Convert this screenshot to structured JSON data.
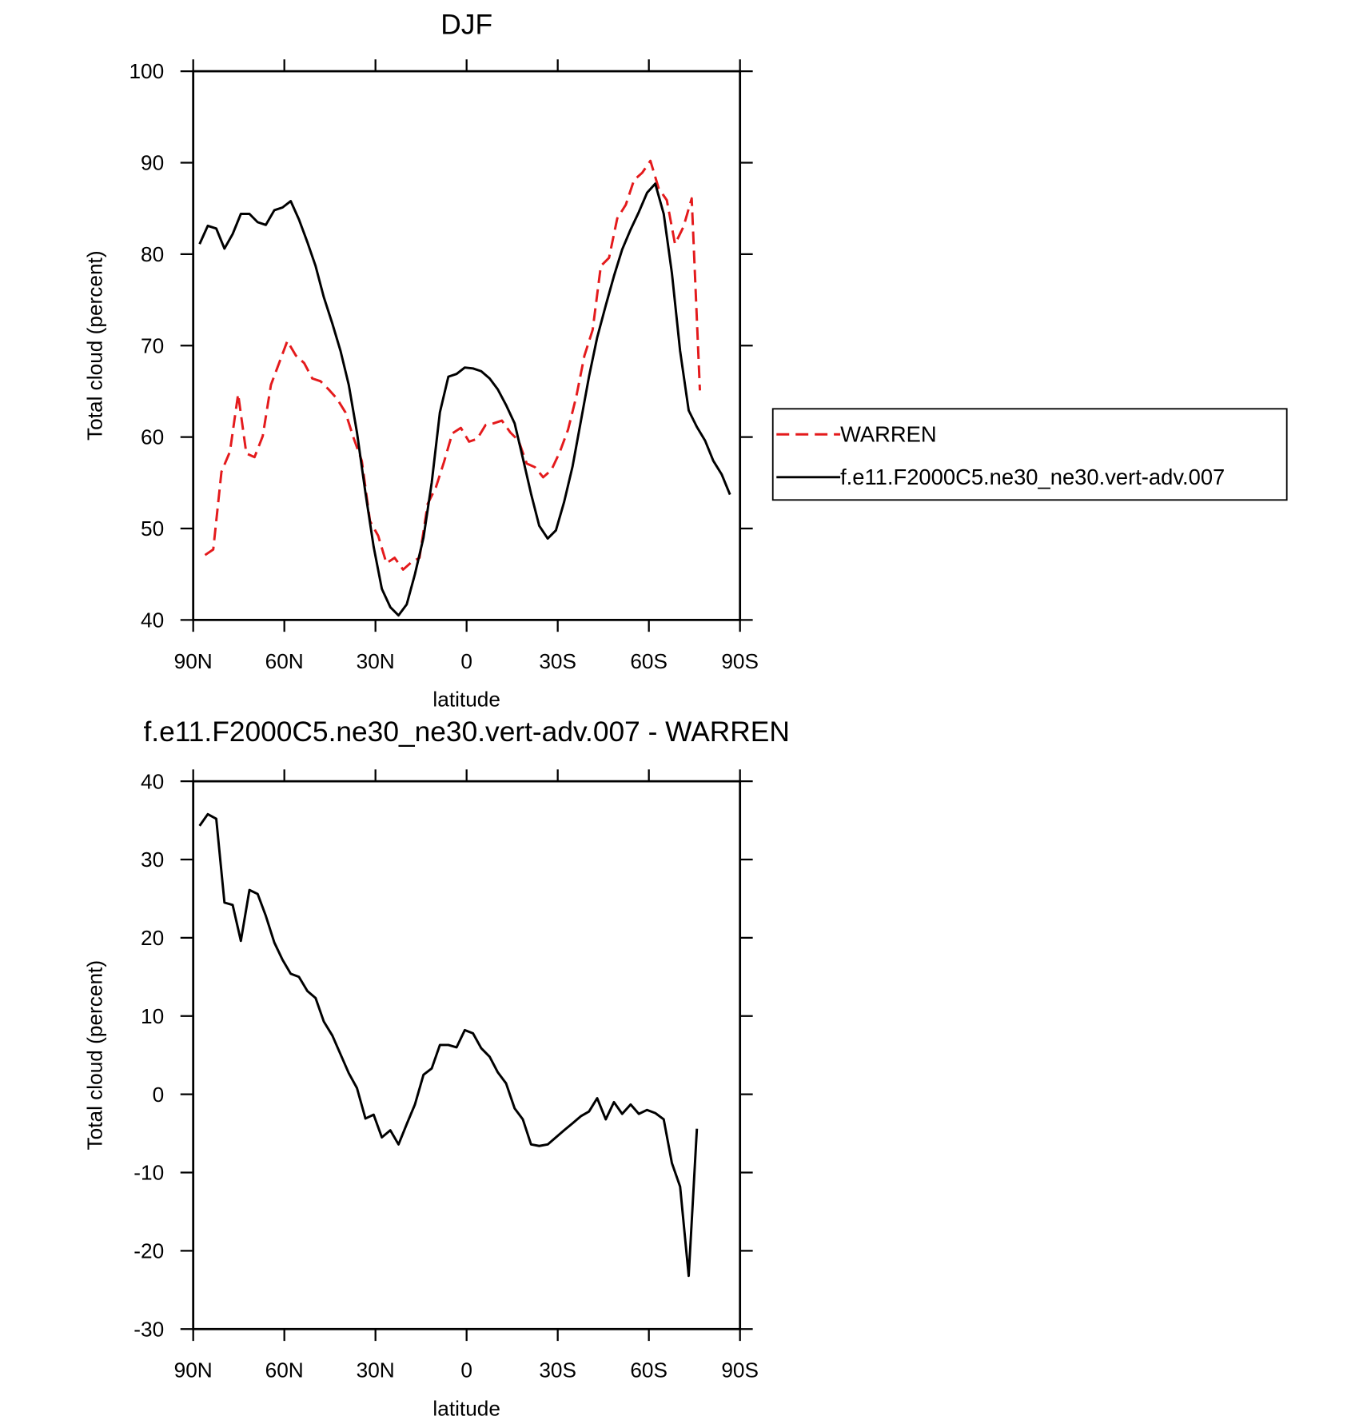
{
  "chart_data": [
    {
      "type": "line",
      "title": "DJF",
      "xlabel": "latitude",
      "ylabel": "Total cloud (percent)",
      "xlim": [
        90,
        -90
      ],
      "xticks": [
        {
          "value": 90,
          "label": "90N"
        },
        {
          "value": 60,
          "label": "60N"
        },
        {
          "value": 30,
          "label": "30N"
        },
        0,
        {
          "value": -30,
          "label": "30S"
        },
        {
          "value": -60,
          "label": "60S"
        },
        {
          "value": -90,
          "label": "90S"
        }
      ],
      "ylim": [
        40,
        100
      ],
      "yticks": [
        40,
        50,
        60,
        70,
        80,
        90,
        100
      ],
      "legend": "right",
      "series": [
        {
          "name": "WARREN",
          "color": "#e41a1c",
          "dashed": true,
          "x": [
            86.1,
            83.4,
            80.7,
            77.9,
            75.2,
            72.5,
            69.8,
            67.1,
            64.4,
            61.7,
            59.0,
            56.2,
            53.5,
            50.8,
            48.1,
            45.4,
            42.7,
            39.9,
            37.2,
            34.5,
            31.8,
            29.1,
            26.4,
            23.7,
            20.9,
            18.2,
            15.5,
            12.8,
            10.1,
            7.4,
            4.7,
            1.9,
            -0.8,
            -3.5,
            -6.2,
            -8.9,
            -11.6,
            -14.4,
            -17.1,
            -19.8,
            -22.5,
            -25.2,
            -27.9,
            -30.6,
            -33.4,
            -36.1,
            -38.8,
            -41.5,
            -44.2,
            -46.9,
            -49.6,
            -52.4,
            -55.1,
            -57.8,
            -60.5,
            -63.2,
            -65.9,
            -68.6,
            -71.4,
            -74.1,
            -76.8
          ],
          "values": [
            47.1,
            47.7,
            56.2,
            58.4,
            64.7,
            58.2,
            57.8,
            60.1,
            65.7,
            68.1,
            70.5,
            68.9,
            68.1,
            66.4,
            66.1,
            65.2,
            64.2,
            62.7,
            59.9,
            57.4,
            50.8,
            49.2,
            46.2,
            46.8,
            45.5,
            46.3,
            46.8,
            52.7,
            54.5,
            57.3,
            60.4,
            61.0,
            59.5,
            59.8,
            61.3,
            61.5,
            61.8,
            60.5,
            59.6,
            57.1,
            56.7,
            55.6,
            56.4,
            58.3,
            60.8,
            64.4,
            68.9,
            71.7,
            78.7,
            79.6,
            83.9,
            85.4,
            88.1,
            88.9,
            90.2,
            87.2,
            85.9,
            81.1,
            83.0,
            86.1,
            65.1
          ]
        },
        {
          "name": "f.e11.F2000C5.ne30_ne30.vert-adv.007",
          "color": "#000000",
          "dashed": false,
          "x": [
            87.9,
            85.2,
            82.4,
            79.7,
            77.0,
            74.3,
            71.5,
            68.8,
            66.1,
            63.3,
            60.6,
            57.9,
            55.2,
            52.4,
            49.7,
            47.0,
            44.2,
            41.5,
            38.8,
            36.1,
            33.3,
            30.6,
            27.9,
            25.1,
            22.4,
            19.7,
            17.0,
            14.2,
            11.5,
            8.8,
            6.0,
            3.3,
            0.6,
            -2.1,
            -4.8,
            -7.6,
            -10.3,
            -13.0,
            -15.8,
            -18.5,
            -21.2,
            -23.9,
            -26.7,
            -29.4,
            -32.1,
            -34.9,
            -37.6,
            -40.3,
            -43.0,
            -45.8,
            -48.5,
            -51.2,
            -54.0,
            -56.7,
            -59.4,
            -62.1,
            -64.9,
            -67.6,
            -70.3,
            -73.1,
            -75.8,
            -78.5,
            -81.2,
            -84.0,
            -86.7
          ],
          "values": [
            81.1,
            83.1,
            82.8,
            80.6,
            82.2,
            84.4,
            84.4,
            83.5,
            83.2,
            84.8,
            85.1,
            85.8,
            83.8,
            81.3,
            78.7,
            75.3,
            72.4,
            69.4,
            65.7,
            60.5,
            53.9,
            48.0,
            43.4,
            41.4,
            40.5,
            41.7,
            45.0,
            49.0,
            55.0,
            62.7,
            66.6,
            66.9,
            67.6,
            67.5,
            67.2,
            66.4,
            65.2,
            63.5,
            61.5,
            57.7,
            53.8,
            50.3,
            48.9,
            49.8,
            52.9,
            56.8,
            61.7,
            66.6,
            70.9,
            74.4,
            77.6,
            80.5,
            82.7,
            84.6,
            86.7,
            87.7,
            84.4,
            77.9,
            69.4,
            62.9,
            61.1,
            59.6,
            57.4,
            55.9,
            53.7
          ]
        }
      ]
    },
    {
      "type": "line",
      "title": "f.e11.F2000C5.ne30_ne30.vert-adv.007 - WARREN",
      "xlabel": "latitude",
      "ylabel": "Total cloud (percent)",
      "xlim": [
        90,
        -90
      ],
      "xticks": [
        {
          "value": 90,
          "label": "90N"
        },
        {
          "value": 60,
          "label": "60N"
        },
        {
          "value": 30,
          "label": "30N"
        },
        0,
        {
          "value": -30,
          "label": "30S"
        },
        {
          "value": -60,
          "label": "60S"
        },
        {
          "value": -90,
          "label": "90S"
        }
      ],
      "ylim": [
        -30,
        40
      ],
      "yticks": [
        -30,
        -20,
        -10,
        0,
        10,
        20,
        30,
        40
      ],
      "series": [
        {
          "color": "#000000",
          "dashed": false,
          "x": [
            87.9,
            85.2,
            82.4,
            79.7,
            77.0,
            74.3,
            71.5,
            68.8,
            66.1,
            63.3,
            60.6,
            57.9,
            55.2,
            52.4,
            49.7,
            47.0,
            44.2,
            41.5,
            38.8,
            36.1,
            33.3,
            30.6,
            27.9,
            25.1,
            22.4,
            19.7,
            17.0,
            14.2,
            11.5,
            8.8,
            6.0,
            3.3,
            0.6,
            -2.1,
            -4.8,
            -7.6,
            -10.3,
            -13.0,
            -15.8,
            -18.5,
            -21.2,
            -23.9,
            -26.7,
            -29.4,
            -32.1,
            -34.9,
            -37.6,
            -40.3,
            -43.0,
            -45.8,
            -48.5,
            -51.2,
            -54.0,
            -56.7,
            -59.4,
            -62.1,
            -64.9,
            -67.6,
            -70.3,
            -73.1,
            -75.8
          ],
          "values": [
            34.3,
            35.8,
            35.2,
            24.5,
            24.2,
            19.6,
            26.1,
            25.6,
            22.8,
            19.4,
            17.2,
            15.4,
            15.0,
            13.2,
            12.3,
            9.3,
            7.5,
            5.1,
            2.7,
            0.8,
            -3.1,
            -2.6,
            -5.5,
            -4.6,
            -6.4,
            -3.8,
            -1.3,
            2.5,
            3.3,
            6.3,
            6.3,
            6.0,
            8.2,
            7.8,
            5.9,
            4.8,
            2.8,
            1.4,
            -1.8,
            -3.2,
            -6.4,
            -6.6,
            -6.4,
            -5.5,
            -4.6,
            -3.7,
            -2.8,
            -2.2,
            -0.5,
            -3.2,
            -1.0,
            -2.5,
            -1.3,
            -2.5,
            -2.0,
            -2.4,
            -3.2,
            -8.8,
            -11.8,
            -23.2,
            -4.4
          ]
        }
      ]
    }
  ]
}
